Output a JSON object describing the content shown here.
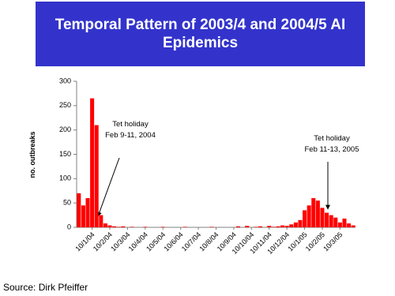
{
  "chart_data": {
    "type": "bar",
    "title": "Temporal Pattern of 2003/4 and 2004/5 AI Epidemics",
    "y_label": "no. outbreaks",
    "categories": [
      null,
      null,
      null,
      "10/1/04",
      null,
      null,
      null,
      "10/2/04",
      null,
      null,
      null,
      "10/3/04",
      null,
      null,
      null,
      "10/4/04",
      null,
      null,
      null,
      "10/5/04",
      null,
      null,
      null,
      "10/6/04",
      null,
      null,
      null,
      "10/7/04",
      null,
      null,
      null,
      "10/8/04",
      null,
      null,
      null,
      "10/9/04",
      null,
      null,
      null,
      "10/10/04",
      null,
      null,
      null,
      "10/11/04",
      null,
      null,
      null,
      "10/12/04",
      null,
      null,
      null,
      "10/1/05",
      null,
      null,
      null,
      "10/2/05",
      null,
      null,
      null,
      "10/3/05",
      null,
      null,
      null
    ],
    "values": [
      70,
      45,
      60,
      265,
      210,
      25,
      8,
      4,
      2,
      1,
      2,
      0,
      1,
      0,
      0,
      1,
      0,
      0,
      0,
      1,
      0,
      0,
      0,
      0,
      1,
      0,
      0,
      0,
      0,
      0,
      1,
      0,
      0,
      0,
      0,
      0,
      2,
      0,
      3,
      0,
      1,
      2,
      0,
      3,
      1,
      2,
      4,
      3,
      6,
      10,
      15,
      35,
      45,
      60,
      55,
      40,
      30,
      25,
      20,
      10,
      18,
      8,
      4
    ],
    "color": "#ff0000",
    "ylim": [
      0,
      300
    ],
    "yticks": [
      0,
      50,
      100,
      150,
      200,
      250,
      300
    ],
    "grid": false,
    "annotations": [
      {
        "lines": [
          "Tet holiday",
          "Feb 9-11, 2004"
        ]
      },
      {
        "lines": [
          "Tet holiday",
          "Feb 11-13, 2005"
        ]
      }
    ],
    "source": "Source: Dirk Pfeiffer"
  }
}
